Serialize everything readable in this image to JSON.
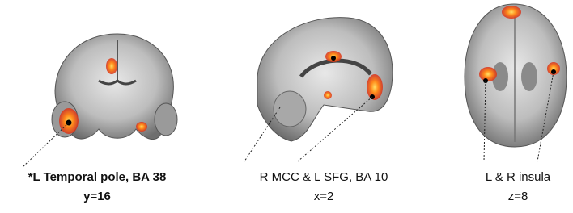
{
  "panels": [
    {
      "label": "*L Temporal pole, BA 38",
      "coordinate": "y=16"
    },
    {
      "label": "R MCC & L SFG, BA 10",
      "coordinate": "x=2"
    },
    {
      "label": "L & R insula",
      "coordinate": "z=8"
    }
  ]
}
